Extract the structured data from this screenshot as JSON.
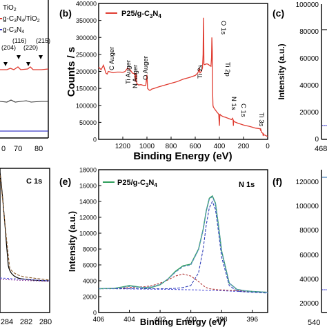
{
  "panels": {
    "a": {
      "legend": [
        "TiO",
        "g-C",
        "N",
        "/TiO",
        "g-C",
        "N"
      ],
      "peaks": [
        "(204)",
        "(116)",
        "(220)",
        "(215)"
      ],
      "xticks": [
        "0",
        "70",
        "80"
      ],
      "colors": {
        "tio2": "#000000",
        "composite": "#e03c31",
        "gcn": "#3b3bc8",
        "peak_arrow": "#000000"
      }
    },
    "b": {
      "letter": "(b)",
      "legend_label": "P25/g-C",
      "legend_sub": "3",
      "legend_tail": "N",
      "legend_sub2": "4",
      "annotations": [
        "C Auger",
        "Ti Auger",
        "N Auger",
        "O Auger",
        "O 1s",
        "Ti 2p",
        "Ti 2s",
        "N 1s",
        "C 1s",
        "Ti 3s"
      ],
      "line_color": "#e03c31"
    },
    "c": {
      "letter": "(c)",
      "ylabel": "Intensity (a.u.)",
      "yticks": [
        "100000",
        "80000",
        "60000",
        "40000",
        "20000",
        "0"
      ],
      "xtick": "468"
    },
    "d": {
      "title": "C 1s",
      "xticks": [
        "284",
        "282",
        "280"
      ]
    },
    "e": {
      "letter": "(e)",
      "title": "N 1s",
      "legend_label": "P25/g-C",
      "legend_sub": "3",
      "legend_tail": "N",
      "legend_sub2": "4",
      "fit_colors": {
        "data": "#2e9e5b",
        "fit": "#5a8fc0",
        "envelope": "#000000",
        "c1": "#2f3fb8",
        "c2": "#b03030"
      }
    },
    "f": {
      "letter": "(f)",
      "yticks": [
        "120000",
        "100000",
        "80000",
        "60000",
        "40000",
        "20000"
      ],
      "xtick": "540"
    }
  },
  "chart_data": [
    {
      "panel": "b",
      "type": "line",
      "xlabel": "Binding Energy (eV)",
      "ylabel": "Counts / s",
      "xlim": [
        1400,
        0
      ],
      "ylim": [
        0,
        400000
      ],
      "xticks": [
        1200,
        1000,
        800,
        600,
        400,
        200,
        0
      ],
      "yticks": [
        0,
        50000,
        100000,
        150000,
        200000,
        250000,
        300000,
        350000,
        400000
      ],
      "ytick_labels": [
        "0",
        "50000",
        "100000",
        "150000",
        "200000",
        "250000",
        "300000",
        "350000",
        "400000"
      ],
      "series": [
        {
          "x": [
            1400,
            1380,
            1360,
            1340,
            1330,
            1320,
            1300,
            1280,
            1250,
            1220,
            1200,
            1180,
            1160,
            1140,
            1120,
            1100,
            1095,
            1090,
            1085,
            1070,
            1050,
            1030,
            1010,
            1000,
            995,
            990,
            985,
            975,
            960,
            940,
            900,
            850,
            800,
            750,
            700,
            650,
            600,
            580,
            570,
            566,
            562,
            560,
            550,
            540,
            535,
            532,
            530,
            528,
            525,
            520,
            510,
            500,
            490,
            480,
            470,
            465,
            462,
            459,
            456,
            453,
            450,
            440,
            420,
            410,
            405,
            400,
            396,
            392,
            385,
            370,
            350,
            320,
            300,
            290,
            286,
            284,
            282,
            278,
            270,
            250,
            200,
            150,
            100,
            80,
            62,
            60,
            58,
            50,
            40,
            37,
            35,
            33,
            30,
            20,
            10,
            0
          ],
          "y": [
            213000,
            205000,
            218000,
            195000,
            192000,
            200000,
            198000,
            196000,
            198000,
            198000,
            197000,
            200000,
            210000,
            205000,
            195000,
            193000,
            170000,
            196000,
            165000,
            160000,
            161000,
            159000,
            159000,
            190000,
            150000,
            148000,
            146000,
            144000,
            148000,
            150000,
            155000,
            160000,
            165000,
            170000,
            177000,
            182000,
            188000,
            195000,
            203000,
            210000,
            198000,
            196000,
            200000,
            210000,
            250000,
            358000,
            300000,
            222000,
            220000,
            220000,
            222000,
            222000,
            220000,
            217000,
            215000,
            240000,
            300000,
            260000,
            140000,
            100000,
            95000,
            90000,
            80000,
            76000,
            72000,
            40000,
            75000,
            72000,
            70000,
            67000,
            65000,
            61000,
            58000,
            62000,
            56000,
            40000,
            55000,
            52000,
            51000,
            48000,
            42000,
            38000,
            33000,
            32000,
            31000,
            28000,
            30000,
            20000,
            18000,
            10000,
            17000,
            15000,
            13000,
            12000,
            10000,
            9000
          ]
        }
      ]
    },
    {
      "panel": "e",
      "type": "line",
      "xlabel": "Binding Energy (eV)",
      "ylabel": "Intensity (a.u.)",
      "xlim": [
        406,
        395
      ],
      "ylim": [
        0,
        18000
      ],
      "xticks": [
        406,
        404,
        402,
        400,
        398,
        396
      ],
      "yticks": [
        0,
        2000,
        4000,
        6000,
        8000,
        10000,
        12000,
        14000,
        16000,
        18000
      ],
      "ytick_labels": [
        "0",
        "2000",
        "4000",
        "6000",
        "8000",
        "10000",
        "12000",
        "14000",
        "16000",
        "18000"
      ],
      "series": [
        {
          "name": "P25/g-C3N4",
          "x": [
            406,
            405,
            404.5,
            404,
            403.5,
            403,
            402.5,
            402,
            401.5,
            401,
            400.5,
            400,
            399.5,
            399.2,
            399,
            398.8,
            398.6,
            398.4,
            398.2,
            398,
            397.5,
            397,
            396.5,
            396,
            395.5,
            395
          ],
          "y": [
            3000,
            3050,
            3200,
            3400,
            3250,
            3100,
            3200,
            3500,
            4200,
            5200,
            5900,
            6100,
            8000,
            10500,
            12800,
            14400,
            14700,
            13800,
            11000,
            7800,
            3700,
            2900,
            2750,
            2650,
            2600,
            2550
          ]
        }
      ],
      "fit_x": [
        406,
        405,
        404.5,
        404,
        403.5,
        403,
        402.5,
        402,
        401.5,
        401,
        400.5,
        400,
        399.5,
        399.2,
        399,
        398.8,
        398.6,
        398.4,
        398.2,
        398,
        397.5,
        397,
        396.5,
        396,
        395.5,
        395
      ],
      "fit_envelope": [
        3000,
        3050,
        3150,
        3300,
        3200,
        3150,
        3250,
        3550,
        4200,
        5100,
        5800,
        6000,
        7900,
        10400,
        12700,
        14300,
        14600,
        13700,
        10900,
        7700,
        3700,
        2900,
        2750,
        2650,
        2600,
        2550
      ],
      "fit_component1": [
        3000,
        3000,
        3000,
        3000,
        3000,
        3000,
        3000,
        3000,
        3000,
        3050,
        3150,
        3400,
        5000,
        8000,
        11000,
        13200,
        14000,
        13000,
        10200,
        7000,
        3400,
        2700,
        2600,
        2550,
        2500,
        2450
      ],
      "fit_component2": [
        3000,
        3000,
        3050,
        3150,
        3200,
        3250,
        3400,
        3700,
        4100,
        4600,
        4850,
        4600,
        3900,
        3400,
        3150,
        3000,
        2950,
        2900,
        2850,
        2850,
        2800,
        2750,
        2700,
        2650,
        2600,
        2550
      ],
      "baseline": [
        3000,
        2990,
        2980,
        2970,
        2960,
        2950,
        2940,
        2930,
        2920,
        2900,
        2880,
        2860,
        2840,
        2820,
        2800,
        2790,
        2780,
        2770,
        2760,
        2750,
        2700,
        2660,
        2630,
        2600,
        2570,
        2540
      ]
    }
  ]
}
